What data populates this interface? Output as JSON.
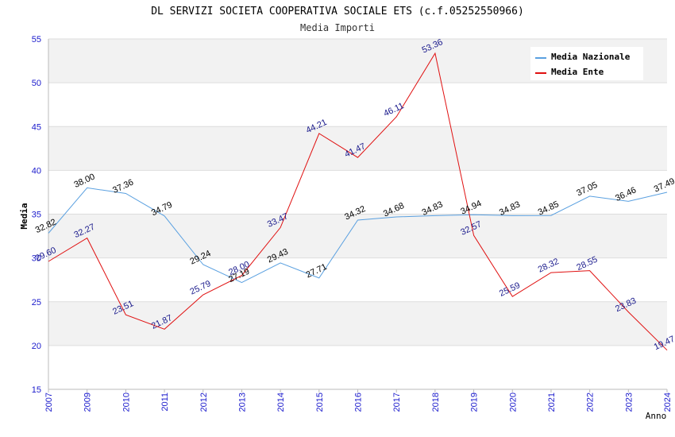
{
  "chart_data": {
    "type": "line",
    "title": "DL SERVIZI SOCIETA COOPERATIVA SOCIALE ETS (c.f.05252550966)",
    "subtitle": "Media Importi",
    "xlabel": "Anno",
    "ylabel": "Media",
    "ylim": [
      15,
      55
    ],
    "yticks": [
      "15",
      "20",
      "25",
      "30",
      "35",
      "40",
      "45",
      "50",
      "55"
    ],
    "grid": true,
    "legend_position": "top-right",
    "x": [
      "2007",
      "2009",
      "2010",
      "2011",
      "2012",
      "2013",
      "2014",
      "2015",
      "2016",
      "2017",
      "2018",
      "2019",
      "2020",
      "2021",
      "2022",
      "2023",
      "2024"
    ],
    "series": [
      {
        "name": "Media Nazionale",
        "color": "#5aa0e0",
        "label_color": "#000000",
        "values": [
          32.82,
          38.0,
          37.36,
          34.79,
          29.24,
          27.19,
          29.43,
          27.71,
          34.32,
          34.68,
          34.83,
          34.94,
          34.83,
          34.85,
          37.05,
          36.46,
          37.49
        ],
        "labels": [
          "32.82",
          "38.00",
          "37.36",
          "34.79",
          "29.24",
          "27.19",
          "29.43",
          "27.71",
          "34.32",
          "34.68",
          "34.83",
          "34.94",
          "34.83",
          "34.85",
          "37.05",
          "36.46",
          "37.49"
        ]
      },
      {
        "name": "Media Ente",
        "color": "#e01010",
        "label_color": "#1a1a8c",
        "values": [
          29.6,
          32.27,
          23.51,
          21.87,
          25.79,
          28.0,
          33.47,
          44.21,
          41.47,
          46.11,
          53.36,
          32.57,
          25.59,
          28.32,
          28.55,
          23.83,
          19.47
        ],
        "labels": [
          "29.60",
          "32.27",
          "23.51",
          "21.87",
          "25.79",
          "28.00",
          "33.47",
          "44.21",
          "41.47",
          "46.11",
          "53.36",
          "32.57",
          "25.59",
          "28.32",
          "28.55",
          "23.83",
          "19.47"
        ]
      }
    ]
  },
  "colors": {
    "band": "#f2f2f2",
    "grid": "#dddddd",
    "axis": "#bbbbbb",
    "tick_text": "#1a1acc",
    "title_text": "#000000"
  }
}
